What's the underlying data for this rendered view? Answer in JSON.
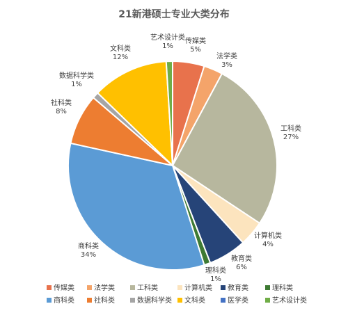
{
  "chart_data": {
    "type": "pie",
    "title": "21新港硕士专业大类分布",
    "slices": [
      {
        "name": "传媒类",
        "value": 5,
        "label": "5%",
        "color": "#E8724C"
      },
      {
        "name": "法学类",
        "value": 3,
        "label": "3%",
        "color": "#F4A46A"
      },
      {
        "name": "工科类",
        "value": 27,
        "label": "27%",
        "color": "#B7B79E"
      },
      {
        "name": "计算机类",
        "value": 4,
        "label": "4%",
        "color": "#FCE4BE"
      },
      {
        "name": "教育类",
        "value": 6,
        "label": "6%",
        "color": "#264478"
      },
      {
        "name": "理科类",
        "value": 1,
        "label": "1%",
        "color": "#3E7A33"
      },
      {
        "name": "商科类",
        "value": 34,
        "label": "34%",
        "color": "#5B9BD5"
      },
      {
        "name": "社科类",
        "value": 8,
        "label": "8%",
        "color": "#ED7D31"
      },
      {
        "name": "数据科学类",
        "value": 1,
        "label": "1%",
        "color": "#A5A5A5"
      },
      {
        "name": "文科类",
        "value": 12,
        "label": "12%",
        "color": "#FFC000"
      },
      {
        "name": "艺术设计类",
        "value": 1,
        "label": "1%",
        "color": "#70AD47"
      }
    ],
    "legend": {
      "placement": "bottom",
      "items": [
        {
          "name": "传媒类",
          "color": "#E8724C"
        },
        {
          "name": "法学类",
          "color": "#F4A46A"
        },
        {
          "name": "工科类",
          "color": "#B7B79E"
        },
        {
          "name": "计算机类",
          "color": "#FCE4BE"
        },
        {
          "name": "教育类",
          "color": "#264478"
        },
        {
          "name": "理科类",
          "color": "#3E7A33"
        },
        {
          "name": "商科类",
          "color": "#5B9BD5"
        },
        {
          "name": "社科类",
          "color": "#ED7D31"
        },
        {
          "name": "数据科学类",
          "color": "#A5A5A5"
        },
        {
          "name": "文科类",
          "color": "#FFC000"
        },
        {
          "name": "医学类",
          "color": "#4472C4"
        },
        {
          "name": "艺术设计类",
          "color": "#70AD47"
        }
      ]
    }
  }
}
